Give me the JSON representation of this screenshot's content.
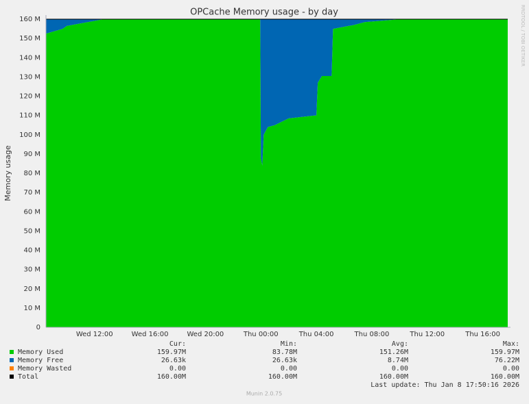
{
  "chart_data": {
    "type": "stacked_area",
    "title": "OPCache Memory usage - by day",
    "y_label": "Memory usage",
    "side_text": "RRDTOOL / TOBI OETIKER",
    "footer": "Munin 2.0.75",
    "last_update": "Last update: Thu Jan  8 17:50:16 2026",
    "stat_headers": [
      "Cur:",
      "Min:",
      "Avg:",
      "Max:"
    ],
    "x": [
      8.5,
      9.7,
      10.0,
      12.6,
      23.95,
      24.0,
      24.1,
      24.2,
      24.5,
      25.0,
      26.0,
      27.9,
      28.0,
      28.1,
      28.4,
      29.1,
      29.2,
      30.7,
      31.5,
      34.0,
      41.8
    ],
    "xlim": [
      8.5,
      41.8
    ],
    "xticks": [
      {
        "value": 12,
        "label": "Wed 12:00"
      },
      {
        "value": 16,
        "label": "Wed 16:00"
      },
      {
        "value": 20,
        "label": "Wed 20:00"
      },
      {
        "value": 24,
        "label": "Thu 00:00"
      },
      {
        "value": 28,
        "label": "Thu 04:00"
      },
      {
        "value": 32,
        "label": "Thu 08:00"
      },
      {
        "value": 36,
        "label": "Thu 12:00"
      },
      {
        "value": 40,
        "label": "Thu 16:00"
      }
    ],
    "ylim": [
      0,
      160
    ],
    "yticks": [
      0,
      {
        "value": 10,
        "label": "10 M"
      },
      {
        "value": 20,
        "label": "20 M"
      },
      {
        "value": 30,
        "label": "30 M"
      },
      {
        "value": 40,
        "label": "40 M"
      },
      {
        "value": 50,
        "label": "50 M"
      },
      {
        "value": 60,
        "label": "60 M"
      },
      {
        "value": 70,
        "label": "70 M"
      },
      {
        "value": 80,
        "label": "80 M"
      },
      {
        "value": 90,
        "label": "90 M"
      },
      {
        "value": 100,
        "label": "100 M"
      },
      {
        "value": 110,
        "label": "110 M"
      },
      {
        "value": 120,
        "label": "120 M"
      },
      {
        "value": 130,
        "label": "130 M"
      },
      {
        "value": 140,
        "label": "140 M"
      },
      {
        "value": 150,
        "label": "150 M"
      },
      {
        "value": 160,
        "label": "160 M"
      }
    ],
    "grid": true,
    "series": [
      {
        "name": "Memory Used",
        "color": "#00cc00",
        "kind": "area",
        "stats": [
          "159.97M",
          "83.78M",
          "151.26M",
          "159.97M"
        ],
        "values": [
          152.5,
          155,
          156.5,
          159.9,
          159.9,
          88,
          84,
          100,
          104,
          105,
          108.5,
          110,
          110,
          127,
          130.5,
          130.5,
          155,
          157,
          158.5,
          159.97,
          159.97
        ]
      },
      {
        "name": "Memory Free",
        "color": "#0066b3",
        "kind": "area",
        "stats": [
          "26.63k",
          "26.63k",
          "8.74M",
          "76.22M"
        ],
        "values": [
          7.5,
          5,
          3.5,
          0.1,
          0.1,
          72,
          76,
          60,
          56,
          55,
          51.5,
          50,
          50,
          33,
          29.5,
          29.5,
          5,
          3,
          1.5,
          0.03,
          0.03
        ]
      },
      {
        "name": "Memory Wasted",
        "color": "#ff8000",
        "kind": "area",
        "stats": [
          "0.00",
          "0.00",
          "0.00",
          "0.00"
        ],
        "values": [
          0,
          0,
          0,
          0,
          0,
          0,
          0,
          0,
          0,
          0,
          0,
          0,
          0,
          0,
          0,
          0,
          0,
          0,
          0,
          0,
          0
        ]
      },
      {
        "name": "Total",
        "color": "#000000",
        "kind": "line",
        "stats": [
          "160.00M",
          "160.00M",
          "160.00M",
          "160.00M"
        ],
        "values": [
          160,
          160,
          160,
          160,
          160,
          160,
          160,
          160,
          160,
          160,
          160,
          160,
          160,
          160,
          160,
          160,
          160,
          160,
          160,
          160,
          160
        ]
      }
    ]
  }
}
